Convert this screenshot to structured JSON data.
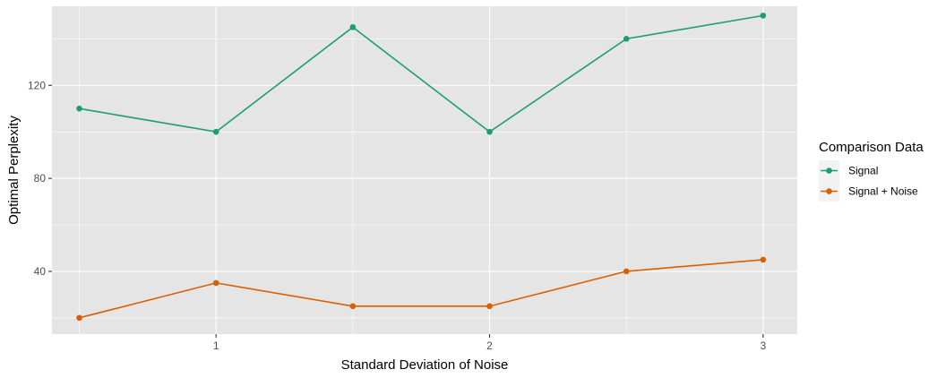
{
  "chart_data": {
    "type": "line",
    "title": "",
    "xlabel": "Standard Deviation of Noise",
    "ylabel": "Optimal Perplexity",
    "x": [
      0.5,
      1.0,
      1.5,
      2.0,
      2.5,
      3.0
    ],
    "xlim": [
      0.4,
      3.125
    ],
    "ylim": [
      13,
      154
    ],
    "x_ticks": [
      1,
      2,
      3
    ],
    "x_tick_labels": [
      "1",
      "2",
      "3"
    ],
    "y_ticks": [
      40,
      80,
      120
    ],
    "y_tick_labels": [
      "40",
      "80",
      "120"
    ],
    "grid": true,
    "legend": {
      "title": "Comparison Data",
      "placement": "right"
    },
    "series": [
      {
        "name": "Signal",
        "color": "#1b9e77",
        "values": [
          110,
          100,
          145,
          100,
          140,
          150
        ]
      },
      {
        "name": "Signal + Noise",
        "color": "#d95f02",
        "values": [
          20,
          35,
          25,
          25,
          40,
          45
        ]
      }
    ]
  },
  "colors": {
    "panel_background": "#e5e5e5",
    "grid_line": "#ffffff"
  }
}
